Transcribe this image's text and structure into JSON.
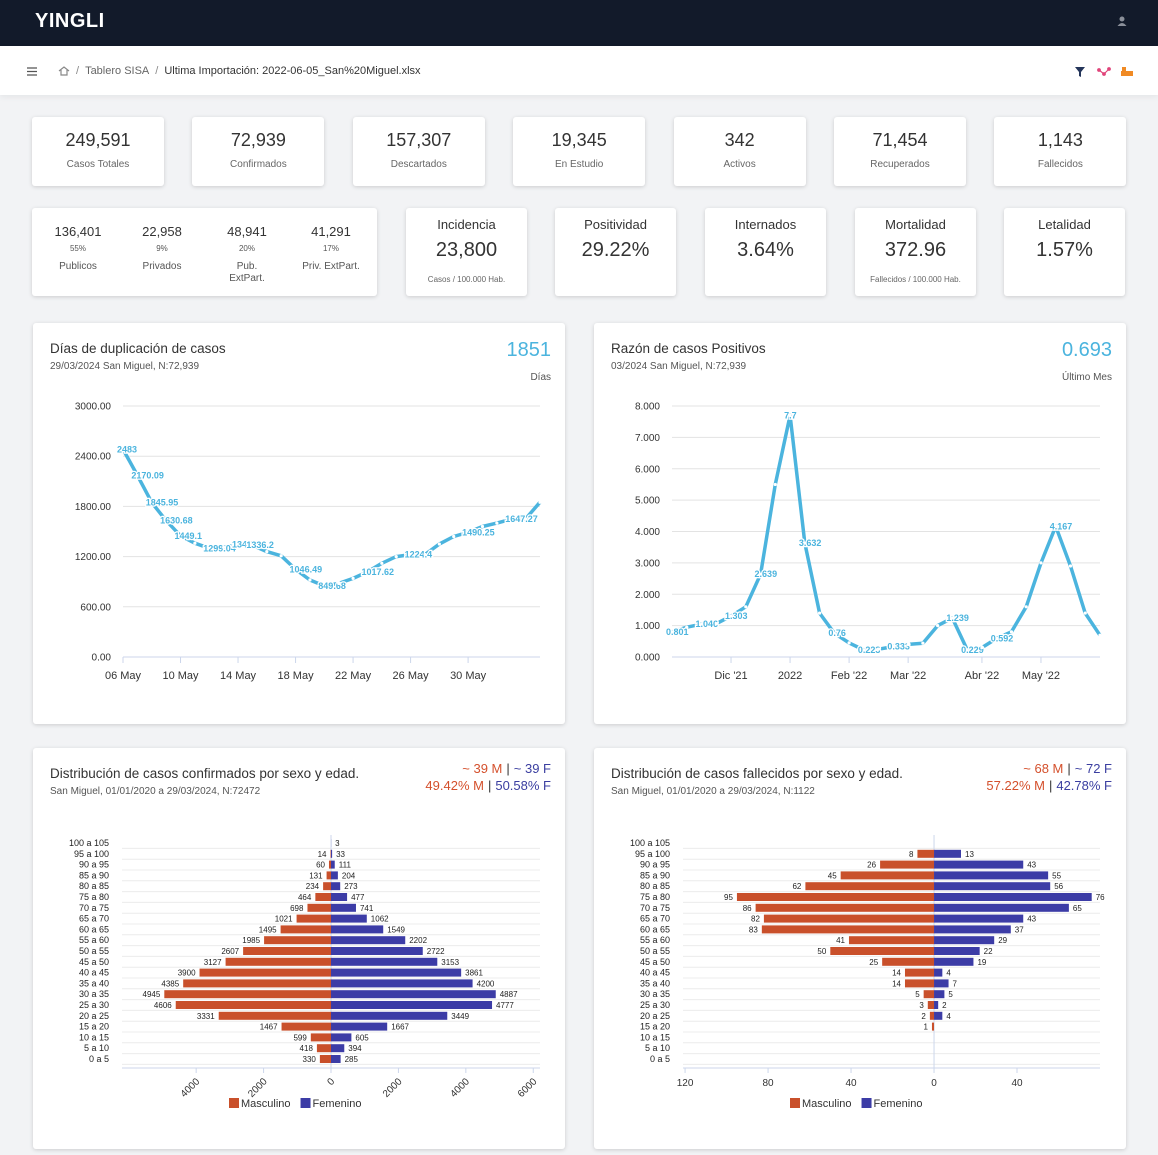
{
  "header": {
    "brand": "YINGLI"
  },
  "breadcrumb": {
    "separator": "/",
    "items": [
      "Tablero SISA",
      "Ultima Importación: 2022-06-05_San%20Miguel.xlsx"
    ]
  },
  "kpis": [
    {
      "value": "249,591",
      "label": "Casos Totales"
    },
    {
      "value": "72,939",
      "label": "Confirmados"
    },
    {
      "value": "157,307",
      "label": "Descartados"
    },
    {
      "value": "19,345",
      "label": "En Estudio"
    },
    {
      "value": "342",
      "label": "Activos"
    },
    {
      "value": "71,454",
      "label": "Recuperados"
    },
    {
      "value": "1,143",
      "label": "Fallecidos"
    }
  ],
  "sectors": [
    {
      "value": "136,401",
      "pct": "55%",
      "label": "Publicos"
    },
    {
      "value": "22,958",
      "pct": "9%",
      "label": "Privados"
    },
    {
      "value": "48,941",
      "pct": "20%",
      "label": "Pub. ExtPart."
    },
    {
      "value": "41,291",
      "pct": "17%",
      "label": "Priv. ExtPart."
    }
  ],
  "indicators": [
    {
      "title": "Incidencia",
      "value": "23,800",
      "note": "Casos / 100.000 Hab."
    },
    {
      "title": "Positividad",
      "value": "29.22%"
    },
    {
      "title": "Internados",
      "value": "3.64%"
    },
    {
      "title": "Mortalidad",
      "value": "372.96",
      "note": "Fallecidos / 100.000 Hab."
    },
    {
      "title": "Letalidad",
      "value": "1.57%"
    }
  ],
  "chart_data": [
    {
      "type": "line",
      "title": "Días de duplicación de casos",
      "subtitle": "29/03/2024 San Miguel, N:72,939",
      "headline": "1851",
      "headline_unit": "Días",
      "categories": [
        "06 May",
        null,
        null,
        null,
        "10 May",
        null,
        null,
        null,
        "14 May",
        null,
        null,
        null,
        "18 May",
        null,
        null,
        null,
        "22 May",
        null,
        null,
        null,
        "26 May",
        null,
        null,
        null,
        "30 May",
        null,
        null,
        null,
        null,
        null
      ],
      "series": [
        {
          "color": "#4bb4de",
          "values": [
            2483,
            2170.09,
            1845.95,
            1630.68,
            1449.1,
            1360,
            1299.04,
            1310,
            1347.04,
            1336.2,
            1260,
            1210,
            1046.49,
            920,
            849.68,
            880,
            940,
            1017.62,
            1120,
            1200,
            1224.4,
            1225,
            1350,
            1440,
            1490.25,
            1560,
            1600,
            1647.27,
            1650,
            1850
          ],
          "value_labels": [
            "2483",
            "2170.09",
            "1845.95",
            "1630.68",
            "1449.1",
            null,
            "1299.04",
            null,
            "1347.04",
            "1336.2",
            null,
            null,
            "1046.49",
            null,
            "849.68",
            null,
            null,
            "1017.62",
            null,
            null,
            "1224.4",
            null,
            null,
            null,
            "1490.25",
            null,
            null,
            "1647.27",
            null,
            null
          ]
        }
      ],
      "ylim": [
        0,
        3000
      ],
      "yticks": [
        {
          "value": 0,
          "label": "0.00"
        },
        {
          "value": 600,
          "label": "600.00"
        },
        {
          "value": 1200,
          "label": "1200.00"
        },
        {
          "value": 1800,
          "label": "1800.00"
        },
        {
          "value": 2400,
          "label": "2400.00"
        },
        {
          "value": 3000,
          "label": "3000.00"
        }
      ],
      "grid": true
    },
    {
      "type": "line",
      "title": "Razón de casos Positivos",
      "subtitle": "03/2024 San Miguel, N:72,939",
      "headline": "0.693",
      "headline_unit": "Último Mes",
      "categories": [
        null,
        null,
        null,
        null,
        "Dic '21",
        null,
        null,
        null,
        "2022",
        null,
        null,
        null,
        "Feb '22",
        null,
        null,
        null,
        "Mar '22",
        null,
        null,
        null,
        null,
        "Abr '22",
        null,
        null,
        null,
        "May '22",
        null,
        null,
        null,
        null
      ],
      "series": [
        {
          "color": "#4bb4de",
          "values": [
            0.801,
            0.95,
            1.046,
            1.06,
            1.303,
            1.6,
            2.639,
            5.5,
            7.7,
            3.632,
            1.4,
            0.76,
            0.45,
            0.223,
            0.25,
            0.333,
            0.4,
            0.44,
            1.0,
            1.239,
            0.229,
            0.3,
            0.592,
            0.8,
            1.6,
            3.0,
            4.167,
            2.9,
            1.4,
            0.693
          ],
          "value_labels": [
            "0.801",
            null,
            "1.046",
            null,
            "1.303",
            null,
            "2.639",
            null,
            "7.7",
            "3.632",
            null,
            "0.76",
            null,
            "0.223",
            null,
            "0.333",
            null,
            null,
            null,
            "1.239",
            "0.229",
            null,
            "0.592",
            null,
            null,
            null,
            "4.167",
            null,
            null,
            null
          ]
        }
      ],
      "ylim": [
        0,
        8
      ],
      "yticks": [
        {
          "value": 0,
          "label": "0.000"
        },
        {
          "value": 1,
          "label": "1.000"
        },
        {
          "value": 2,
          "label": "2.000"
        },
        {
          "value": 3,
          "label": "3.000"
        },
        {
          "value": 4,
          "label": "4.000"
        },
        {
          "value": 5,
          "label": "5.000"
        },
        {
          "value": 6,
          "label": "6.000"
        },
        {
          "value": 7,
          "label": "7.000"
        },
        {
          "value": 8,
          "label": "8.000"
        }
      ],
      "grid": true
    },
    {
      "type": "pyramid",
      "title": "Distribución de casos confirmados por sexo y edad.",
      "subtitle": "San Miguel, 01/01/2020 a 29/03/2024, N:72472",
      "stats": {
        "m_age": "~ 39 M",
        "f_age": "~ 39 F",
        "m_pct": "49.42% M",
        "f_pct": "50.58% F",
        "separator": "|"
      },
      "categories": [
        "100 a 105",
        "95 a 100",
        "90 a 95",
        "85 a 90",
        "80 a 85",
        "75 a 80",
        "70 a 75",
        "65 a 70",
        "60 a 65",
        "55 a 60",
        "50 a 55",
        "45 a 50",
        "40 a 45",
        "35 a 40",
        "30 a 35",
        "25 a 30",
        "20 a 25",
        "15 a 20",
        "10 a 15",
        "5 a 10",
        "0 a 5"
      ],
      "series": [
        {
          "name": "Masculino",
          "color": "#c9502b",
          "values": [
            null,
            14,
            60,
            131,
            234,
            464,
            698,
            1021,
            1495,
            1985,
            2607,
            3127,
            3900,
            4385,
            4945,
            4606,
            3331,
            1467,
            599,
            418,
            330
          ]
        },
        {
          "name": "Femenino",
          "color": "#3c3ca6",
          "values": [
            3,
            33,
            111,
            204,
            273,
            477,
            741,
            1062,
            1549,
            2202,
            2722,
            3153,
            3861,
            4200,
            4887,
            4777,
            3449,
            1667,
            605,
            394,
            285
          ]
        }
      ],
      "xlim": [
        -6200,
        6200
      ],
      "xticks": [
        {
          "value": -4000,
          "label": "4000"
        },
        {
          "value": -2000,
          "label": "2000"
        },
        0,
        2000,
        4000,
        6000
      ],
      "rotate_ticks": true
    },
    {
      "type": "pyramid",
      "title": "Distribución de casos fallecidos por sexo y edad.",
      "subtitle": "San Miguel, 01/01/2020 a 29/03/2024, N:1122",
      "stats": {
        "m_age": "~ 68 M",
        "f_age": "~ 72 F",
        "m_pct": "57.22% M",
        "f_pct": "42.78% F",
        "separator": "|"
      },
      "categories": [
        "100 a 105",
        "95 a 100",
        "90 a 95",
        "85 a 90",
        "80 a 85",
        "75 a 80",
        "70 a 75",
        "65 a 70",
        "60 a 65",
        "55 a 60",
        "50 a 55",
        "45 a 50",
        "40 a 45",
        "35 a 40",
        "30 a 35",
        "25 a 30",
        "20 a 25",
        "15 a 20",
        "10 a 15",
        "5 a 10",
        "0 a 5"
      ],
      "series": [
        {
          "name": "Masculino",
          "color": "#c9502b",
          "values": [
            null,
            8,
            26,
            45,
            62,
            95,
            86,
            82,
            83,
            41,
            50,
            25,
            14,
            14,
            5,
            3,
            2,
            1,
            null,
            null,
            null
          ]
        },
        {
          "name": "Femenino",
          "color": "#3c3ca6",
          "values": [
            null,
            13,
            43,
            55,
            56,
            76,
            65,
            43,
            37,
            29,
            22,
            19,
            4,
            7,
            5,
            2,
            4,
            null,
            null,
            null,
            null
          ]
        }
      ],
      "xlim": [
        -121,
        80
      ],
      "xticks": [
        {
          "value": -120,
          "label": "120"
        },
        {
          "value": -80,
          "label": "80"
        },
        {
          "value": -40,
          "label": "40"
        },
        0,
        40
      ],
      "rotate_ticks": false
    }
  ]
}
